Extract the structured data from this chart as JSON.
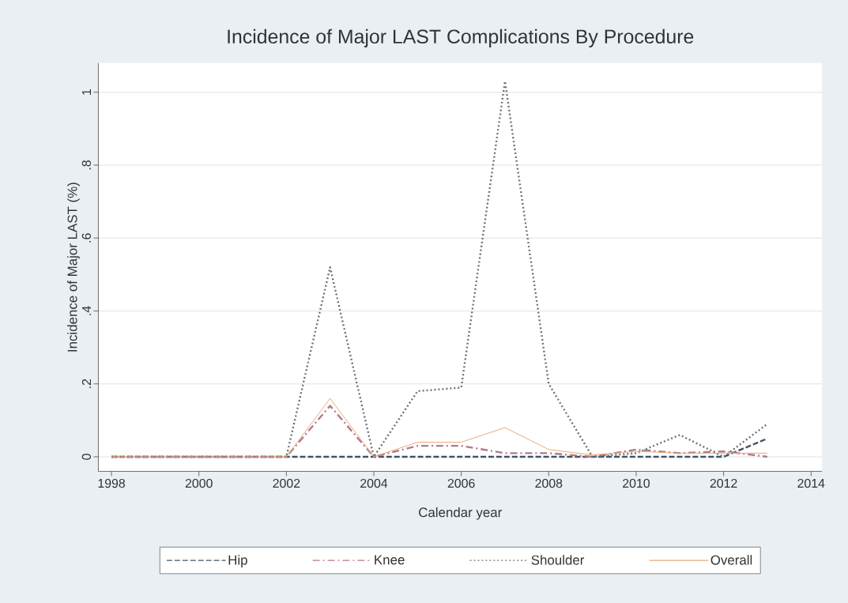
{
  "chart_data": {
    "type": "line",
    "title": "Incidence of Major LAST Complications By Procedure",
    "xlabel": "Calendar year",
    "ylabel": "Incidence of Major LAST (%)",
    "x": [
      1998,
      1999,
      2000,
      2001,
      2002,
      2003,
      2004,
      2005,
      2006,
      2007,
      2008,
      2009,
      2010,
      2011,
      2012,
      2013
    ],
    "series": [
      {
        "name": "Hip",
        "color": "#3d5566",
        "line_style": "dashed",
        "values": [
          0,
          0,
          0,
          0,
          0,
          0,
          0,
          0,
          0,
          0,
          0,
          0,
          0,
          0,
          0,
          0.05
        ]
      },
      {
        "name": "Knee",
        "color": "#b07a8a",
        "line_style": "dashdot",
        "values": [
          0,
          0,
          0,
          0,
          0,
          0.14,
          0,
          0.03,
          0.03,
          0.01,
          0.01,
          0,
          0.02,
          0.01,
          0.015,
          0
        ]
      },
      {
        "name": "Shoulder",
        "color": "#707070",
        "line_style": "dotted",
        "values": [
          0,
          0,
          0,
          0,
          0,
          0.52,
          0,
          0.18,
          0.19,
          1.03,
          0.2,
          0,
          0.01,
          0.06,
          0,
          0.09
        ]
      },
      {
        "name": "Overall",
        "color": "#e8a878",
        "line_style": "solid",
        "values": [
          0,
          0,
          0,
          0,
          0,
          0.16,
          0,
          0.04,
          0.04,
          0.08,
          0.02,
          0.005,
          0.015,
          0.01,
          0.01,
          0.01
        ]
      }
    ],
    "xlim": [
      1997.7,
      2014.25
    ],
    "ylim": [
      -0.04,
      1.08
    ],
    "xticks": [
      1998,
      2000,
      2002,
      2004,
      2006,
      2008,
      2010,
      2012,
      2014
    ],
    "yticks": [
      {
        "value": 0,
        "label": "0"
      },
      {
        "value": 0.2,
        "label": ".2"
      },
      {
        "value": 0.4,
        "label": ".4"
      },
      {
        "value": 0.6,
        "label": ".6"
      },
      {
        "value": 0.8,
        "label": ".8"
      },
      {
        "value": 1,
        "label": "1"
      }
    ],
    "grid": "y",
    "legend": "bottom"
  }
}
